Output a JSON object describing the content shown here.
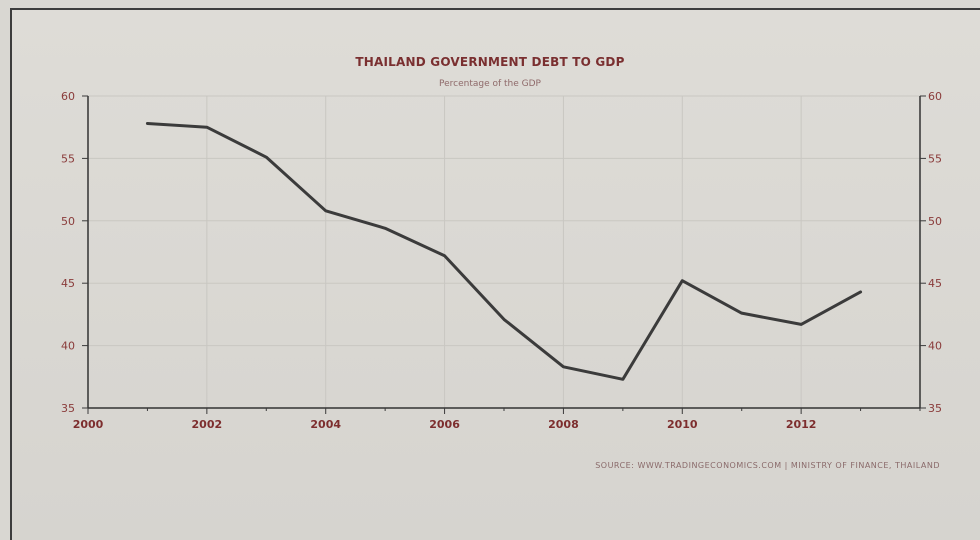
{
  "chart_data": {
    "type": "line",
    "title": "THAILAND GOVERNMENT DEBT TO GDP",
    "subtitle": "Percentage of the GDP",
    "source": "SOURCE: WWW.TRADINGECONOMICS.COM | MINISTRY OF FINANCE, THAILAND",
    "xlabel": "",
    "ylabel": "",
    "xlim": [
      2000,
      2014
    ],
    "ylim": [
      35,
      60
    ],
    "x_ticks": [
      2000,
      2002,
      2004,
      2006,
      2008,
      2010,
      2012
    ],
    "y_ticks": [
      35,
      40,
      45,
      50,
      55,
      60
    ],
    "grid": true,
    "series": [
      {
        "x": [
          2001,
          2002,
          2003,
          2004,
          2005,
          2006,
          2007,
          2008,
          2009,
          2010,
          2011,
          2012,
          2013
        ],
        "values": [
          57.8,
          57.5,
          55.1,
          50.8,
          49.4,
          47.2,
          42.1,
          38.3,
          37.3,
          45.2,
          42.6,
          41.7,
          44.3
        ]
      }
    ],
    "line_color": "#3b3b3b"
  }
}
